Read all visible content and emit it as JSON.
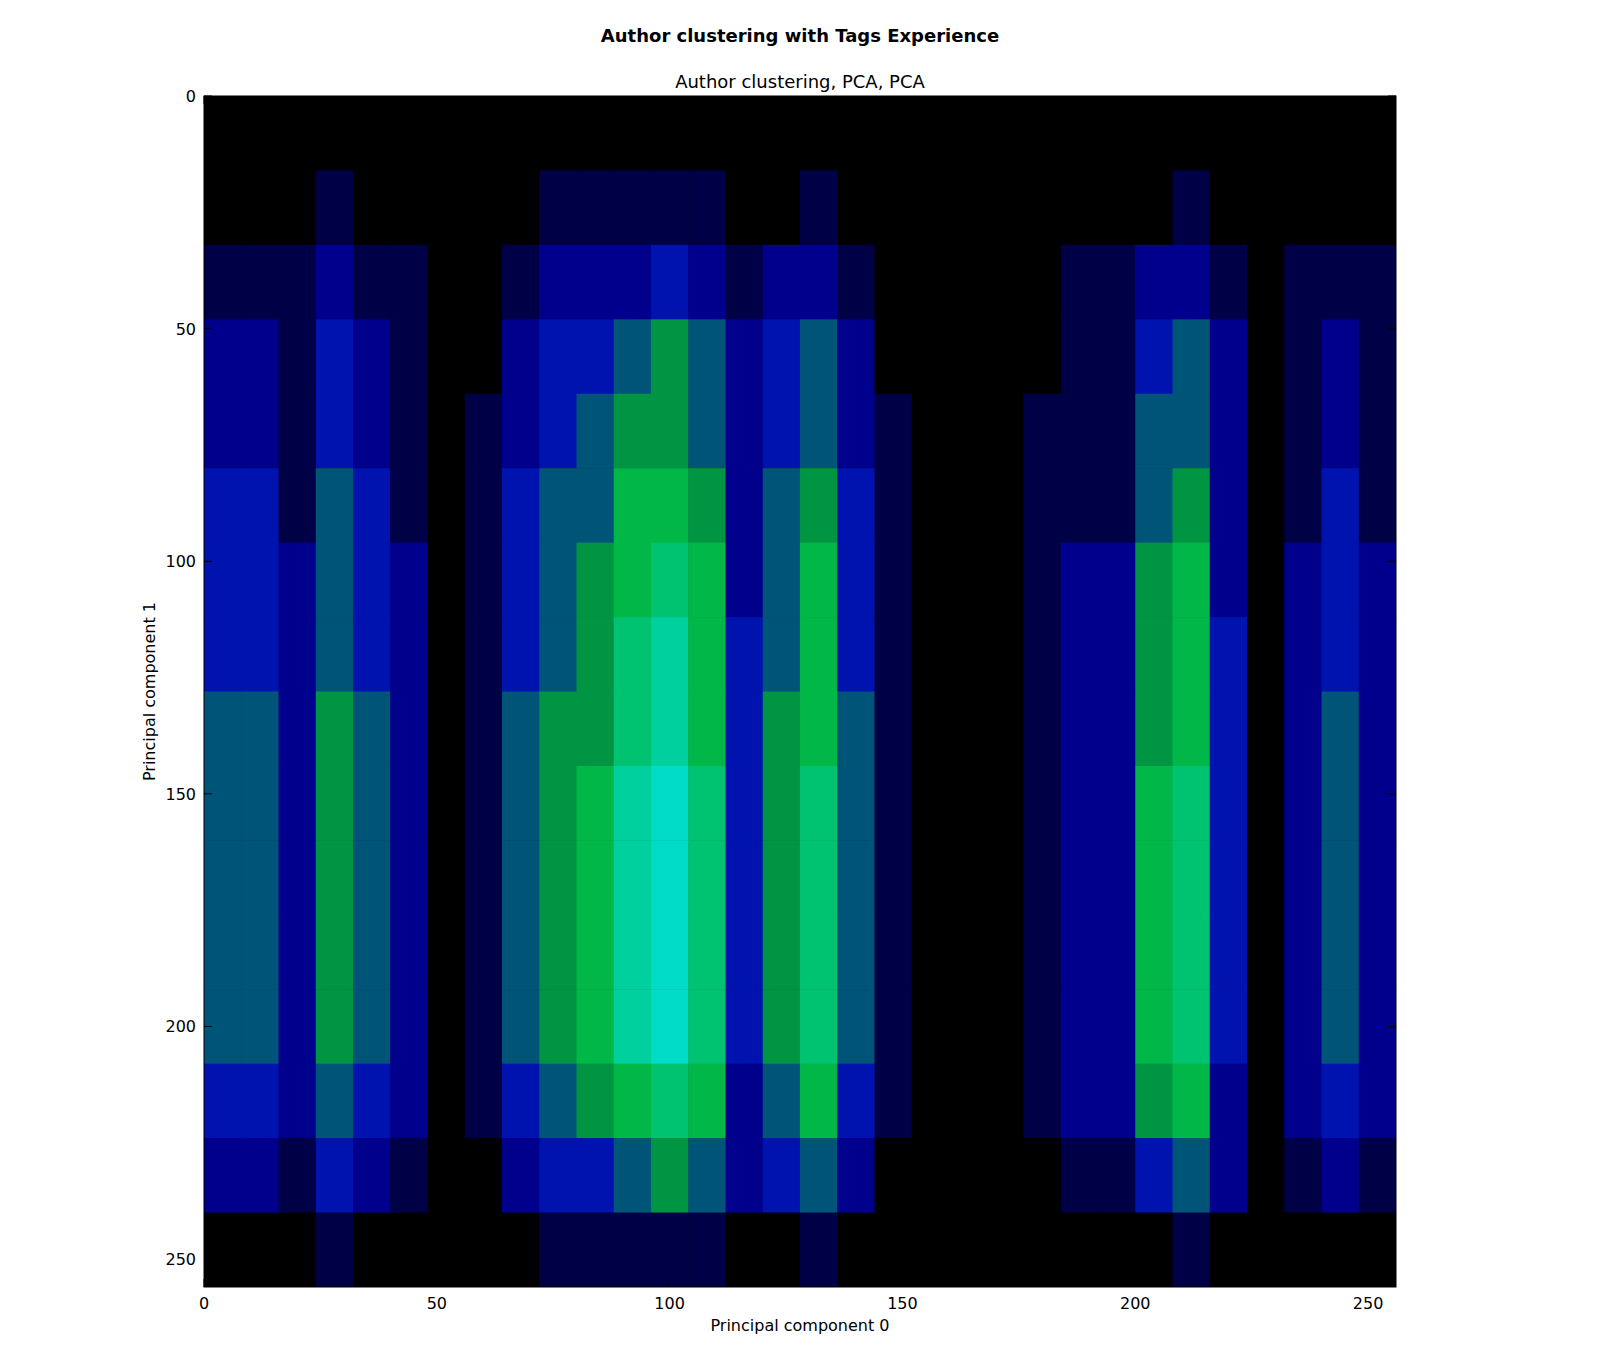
{
  "chart_data": {
    "type": "heatmap",
    "title": "Author clustering with Tags Experience",
    "subtitle": "Author clustering, PCA, PCA",
    "x_label": "Principal component 0",
    "y_label": "Principal component 1",
    "xlim": [
      0,
      256
    ],
    "ylim": [
      256,
      0
    ],
    "xticks": [
      0,
      50,
      100,
      150,
      200,
      250
    ],
    "yticks": [
      0,
      50,
      100,
      150,
      200,
      250
    ],
    "value_range": [
      0,
      9
    ],
    "x_bins": [
      0,
      8,
      16,
      24,
      32,
      40,
      48,
      56,
      64,
      72,
      80,
      88,
      96,
      104,
      112,
      120,
      128,
      136,
      144,
      152,
      160,
      168,
      176,
      184,
      192,
      200,
      208,
      216,
      224,
      232,
      240,
      248,
      256
    ],
    "y_bins": [
      0,
      16,
      32,
      48,
      64,
      80,
      96,
      112,
      128,
      144,
      160,
      176,
      192,
      208,
      224,
      240,
      256
    ],
    "cells": [
      [
        0,
        0,
        0,
        0,
        0,
        0,
        0,
        0,
        0,
        0,
        0,
        0,
        0,
        0,
        0,
        0,
        0,
        0,
        0,
        0,
        0,
        0,
        0,
        0,
        0,
        0,
        0,
        0,
        0,
        0,
        0,
        0
      ],
      [
        0,
        0,
        0,
        1,
        0,
        0,
        0,
        0,
        0,
        1,
        1,
        1,
        1,
        1,
        0,
        0,
        1,
        0,
        0,
        0,
        0,
        0,
        0,
        0,
        0,
        0,
        1,
        0,
        0,
        0,
        0,
        0
      ],
      [
        1,
        1,
        1,
        2,
        1,
        1,
        0,
        0,
        1,
        2,
        2,
        2,
        3,
        2,
        1,
        2,
        2,
        1,
        0,
        0,
        0,
        0,
        0,
        1,
        1,
        2,
        2,
        1,
        0,
        1,
        1,
        1
      ],
      [
        2,
        2,
        1,
        3,
        2,
        1,
        0,
        0,
        2,
        3,
        3,
        4,
        5,
        4,
        2,
        3,
        4,
        2,
        0,
        0,
        0,
        0,
        0,
        1,
        1,
        3,
        4,
        2,
        0,
        1,
        2,
        1
      ],
      [
        2,
        2,
        1,
        3,
        2,
        1,
        0,
        1,
        2,
        3,
        4,
        5,
        5,
        4,
        2,
        3,
        4,
        2,
        1,
        0,
        0,
        0,
        1,
        1,
        1,
        4,
        4,
        2,
        0,
        1,
        2,
        1
      ],
      [
        3,
        3,
        1,
        4,
        3,
        1,
        0,
        1,
        3,
        4,
        4,
        6,
        6,
        5,
        2,
        4,
        5,
        3,
        1,
        0,
        0,
        0,
        1,
        1,
        1,
        4,
        5,
        2,
        0,
        1,
        3,
        1
      ],
      [
        3,
        3,
        2,
        4,
        3,
        2,
        0,
        1,
        3,
        4,
        5,
        6,
        7,
        6,
        2,
        4,
        6,
        3,
        1,
        0,
        0,
        0,
        1,
        2,
        2,
        5,
        6,
        2,
        0,
        2,
        3,
        2
      ],
      [
        3,
        3,
        2,
        4,
        3,
        2,
        0,
        1,
        3,
        4,
        5,
        7,
        8,
        6,
        3,
        4,
        6,
        3,
        1,
        0,
        0,
        0,
        1,
        2,
        2,
        5,
        6,
        3,
        0,
        2,
        3,
        2
      ],
      [
        4,
        4,
        2,
        5,
        4,
        2,
        0,
        1,
        4,
        5,
        5,
        7,
        8,
        6,
        3,
        5,
        6,
        4,
        1,
        0,
        0,
        0,
        1,
        2,
        2,
        5,
        6,
        3,
        0,
        2,
        4,
        2
      ],
      [
        4,
        4,
        2,
        5,
        4,
        2,
        0,
        1,
        4,
        5,
        6,
        8,
        9,
        7,
        3,
        5,
        7,
        4,
        1,
        0,
        0,
        0,
        1,
        2,
        2,
        6,
        7,
        3,
        0,
        2,
        4,
        2
      ],
      [
        4,
        4,
        2,
        5,
        4,
        2,
        0,
        1,
        4,
        5,
        6,
        8,
        9,
        7,
        3,
        5,
        7,
        4,
        1,
        0,
        0,
        0,
        1,
        2,
        2,
        6,
        7,
        3,
        0,
        2,
        4,
        2
      ],
      [
        4,
        4,
        2,
        5,
        4,
        2,
        0,
        1,
        4,
        5,
        6,
        8,
        9,
        7,
        3,
        5,
        7,
        4,
        1,
        0,
        0,
        0,
        1,
        2,
        2,
        6,
        7,
        3,
        0,
        2,
        4,
        2
      ],
      [
        4,
        4,
        2,
        5,
        4,
        2,
        0,
        1,
        4,
        5,
        6,
        8,
        9,
        7,
        3,
        5,
        7,
        4,
        1,
        0,
        0,
        0,
        1,
        2,
        2,
        6,
        7,
        3,
        0,
        2,
        4,
        2
      ],
      [
        3,
        3,
        2,
        4,
        3,
        2,
        0,
        1,
        3,
        4,
        5,
        6,
        7,
        6,
        2,
        4,
        6,
        3,
        1,
        0,
        0,
        0,
        1,
        2,
        2,
        5,
        6,
        2,
        0,
        2,
        3,
        2
      ],
      [
        2,
        2,
        1,
        3,
        2,
        1,
        0,
        0,
        2,
        3,
        3,
        4,
        5,
        4,
        2,
        3,
        4,
        2,
        0,
        0,
        0,
        0,
        0,
        1,
        1,
        3,
        4,
        2,
        0,
        1,
        2,
        1
      ],
      [
        0,
        0,
        0,
        1,
        0,
        0,
        0,
        0,
        0,
        1,
        1,
        1,
        1,
        1,
        0,
        0,
        1,
        0,
        0,
        0,
        0,
        0,
        0,
        0,
        0,
        0,
        1,
        0,
        0,
        0,
        0,
        0
      ]
    ]
  }
}
